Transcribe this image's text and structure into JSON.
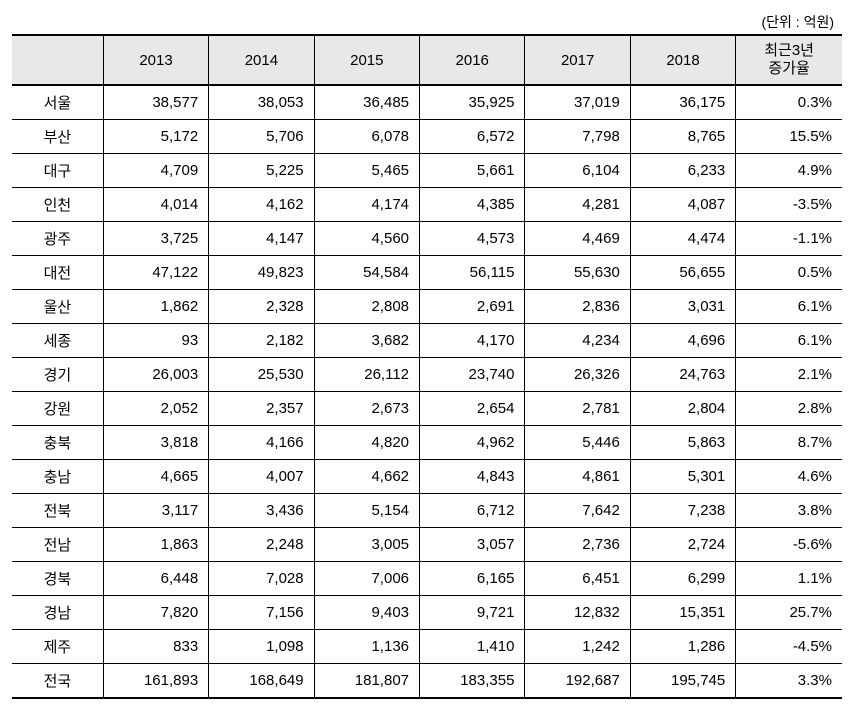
{
  "unit_label": "(단위 : 억원)",
  "table": {
    "columns": [
      "",
      "2013",
      "2014",
      "2015",
      "2016",
      "2017",
      "2018",
      "최근3년\n증가율"
    ],
    "header_bg": "#e8e8e8",
    "border_color": "#000000",
    "rows": [
      {
        "region": "서울",
        "y2013": "38,577",
        "y2014": "38,053",
        "y2015": "36,485",
        "y2016": "35,925",
        "y2017": "37,019",
        "y2018": "36,175",
        "rate": "0.3%"
      },
      {
        "region": "부산",
        "y2013": "5,172",
        "y2014": "5,706",
        "y2015": "6,078",
        "y2016": "6,572",
        "y2017": "7,798",
        "y2018": "8,765",
        "rate": "15.5%"
      },
      {
        "region": "대구",
        "y2013": "4,709",
        "y2014": "5,225",
        "y2015": "5,465",
        "y2016": "5,661",
        "y2017": "6,104",
        "y2018": "6,233",
        "rate": "4.9%"
      },
      {
        "region": "인천",
        "y2013": "4,014",
        "y2014": "4,162",
        "y2015": "4,174",
        "y2016": "4,385",
        "y2017": "4,281",
        "y2018": "4,087",
        "rate": "-3.5%"
      },
      {
        "region": "광주",
        "y2013": "3,725",
        "y2014": "4,147",
        "y2015": "4,560",
        "y2016": "4,573",
        "y2017": "4,469",
        "y2018": "4,474",
        "rate": "-1.1%"
      },
      {
        "region": "대전",
        "y2013": "47,122",
        "y2014": "49,823",
        "y2015": "54,584",
        "y2016": "56,115",
        "y2017": "55,630",
        "y2018": "56,655",
        "rate": "0.5%"
      },
      {
        "region": "울산",
        "y2013": "1,862",
        "y2014": "2,328",
        "y2015": "2,808",
        "y2016": "2,691",
        "y2017": "2,836",
        "y2018": "3,031",
        "rate": "6.1%"
      },
      {
        "region": "세종",
        "y2013": "93",
        "y2014": "2,182",
        "y2015": "3,682",
        "y2016": "4,170",
        "y2017": "4,234",
        "y2018": "4,696",
        "rate": "6.1%"
      },
      {
        "region": "경기",
        "y2013": "26,003",
        "y2014": "25,530",
        "y2015": "26,112",
        "y2016": "23,740",
        "y2017": "26,326",
        "y2018": "24,763",
        "rate": "2.1%"
      },
      {
        "region": "강원",
        "y2013": "2,052",
        "y2014": "2,357",
        "y2015": "2,673",
        "y2016": "2,654",
        "y2017": "2,781",
        "y2018": "2,804",
        "rate": "2.8%"
      },
      {
        "region": "충북",
        "y2013": "3,818",
        "y2014": "4,166",
        "y2015": "4,820",
        "y2016": "4,962",
        "y2017": "5,446",
        "y2018": "5,863",
        "rate": "8.7%"
      },
      {
        "region": "충남",
        "y2013": "4,665",
        "y2014": "4,007",
        "y2015": "4,662",
        "y2016": "4,843",
        "y2017": "4,861",
        "y2018": "5,301",
        "rate": "4.6%"
      },
      {
        "region": "전북",
        "y2013": "3,117",
        "y2014": "3,436",
        "y2015": "5,154",
        "y2016": "6,712",
        "y2017": "7,642",
        "y2018": "7,238",
        "rate": "3.8%"
      },
      {
        "region": "전남",
        "y2013": "1,863",
        "y2014": "2,248",
        "y2015": "3,005",
        "y2016": "3,057",
        "y2017": "2,736",
        "y2018": "2,724",
        "rate": "-5.6%"
      },
      {
        "region": "경북",
        "y2013": "6,448",
        "y2014": "7,028",
        "y2015": "7,006",
        "y2016": "6,165",
        "y2017": "6,451",
        "y2018": "6,299",
        "rate": "1.1%"
      },
      {
        "region": "경남",
        "y2013": "7,820",
        "y2014": "7,156",
        "y2015": "9,403",
        "y2016": "9,721",
        "y2017": "12,832",
        "y2018": "15,351",
        "rate": "25.7%"
      },
      {
        "region": "제주",
        "y2013": "833",
        "y2014": "1,098",
        "y2015": "1,136",
        "y2016": "1,410",
        "y2017": "1,242",
        "y2018": "1,286",
        "rate": "-4.5%"
      },
      {
        "region": "전국",
        "y2013": "161,893",
        "y2014": "168,649",
        "y2015": "181,807",
        "y2016": "183,355",
        "y2017": "192,687",
        "y2018": "195,745",
        "rate": "3.3%"
      }
    ]
  }
}
